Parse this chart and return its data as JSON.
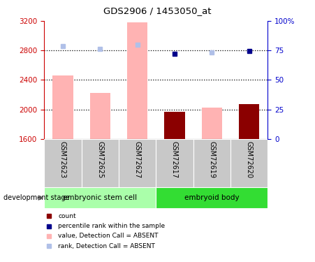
{
  "title": "GDS2906 / 1453050_at",
  "categories": [
    "GSM72623",
    "GSM72625",
    "GSM72627",
    "GSM72617",
    "GSM72619",
    "GSM72620"
  ],
  "group1_label": "embryonic stem cell",
  "group2_label": "embryoid body",
  "grouping_label": "development stage",
  "ylim_left": [
    1600,
    3200
  ],
  "ylim_right": [
    0,
    100
  ],
  "yticks_left": [
    1600,
    2000,
    2400,
    2800,
    3200
  ],
  "yticks_right": [
    0,
    25,
    50,
    75,
    100
  ],
  "bar_values_absent": [
    2460,
    2220,
    3180,
    0,
    2020,
    0
  ],
  "bar_values_count": [
    0,
    0,
    0,
    1970,
    0,
    2070
  ],
  "rank_absent_values": [
    2860,
    2820,
    2880,
    0,
    2770,
    0
  ],
  "rank_present_values": [
    0,
    0,
    0,
    2750,
    0,
    2790
  ],
  "absent_flags": [
    true,
    true,
    true,
    false,
    true,
    false
  ],
  "bar_color_absent": "#ffb3b3",
  "bar_color_count": "#8b0000",
  "rank_absent_color": "#b0c0e8",
  "rank_present_color": "#00008b",
  "left_axis_color": "#cc0000",
  "right_axis_color": "#0000cc",
  "group1_bg": "#aaffaa",
  "group2_bg": "#33dd33",
  "xlabel_area_bg": "#c8c8c8",
  "dotted_lines": [
    2000,
    2400,
    2800
  ],
  "legend_items": [
    {
      "label": "count",
      "color": "#8b0000"
    },
    {
      "label": "percentile rank within the sample",
      "color": "#00008b"
    },
    {
      "label": "value, Detection Call = ABSENT",
      "color": "#ffb3b3"
    },
    {
      "label": "rank, Detection Call = ABSENT",
      "color": "#b0c0e8"
    }
  ]
}
